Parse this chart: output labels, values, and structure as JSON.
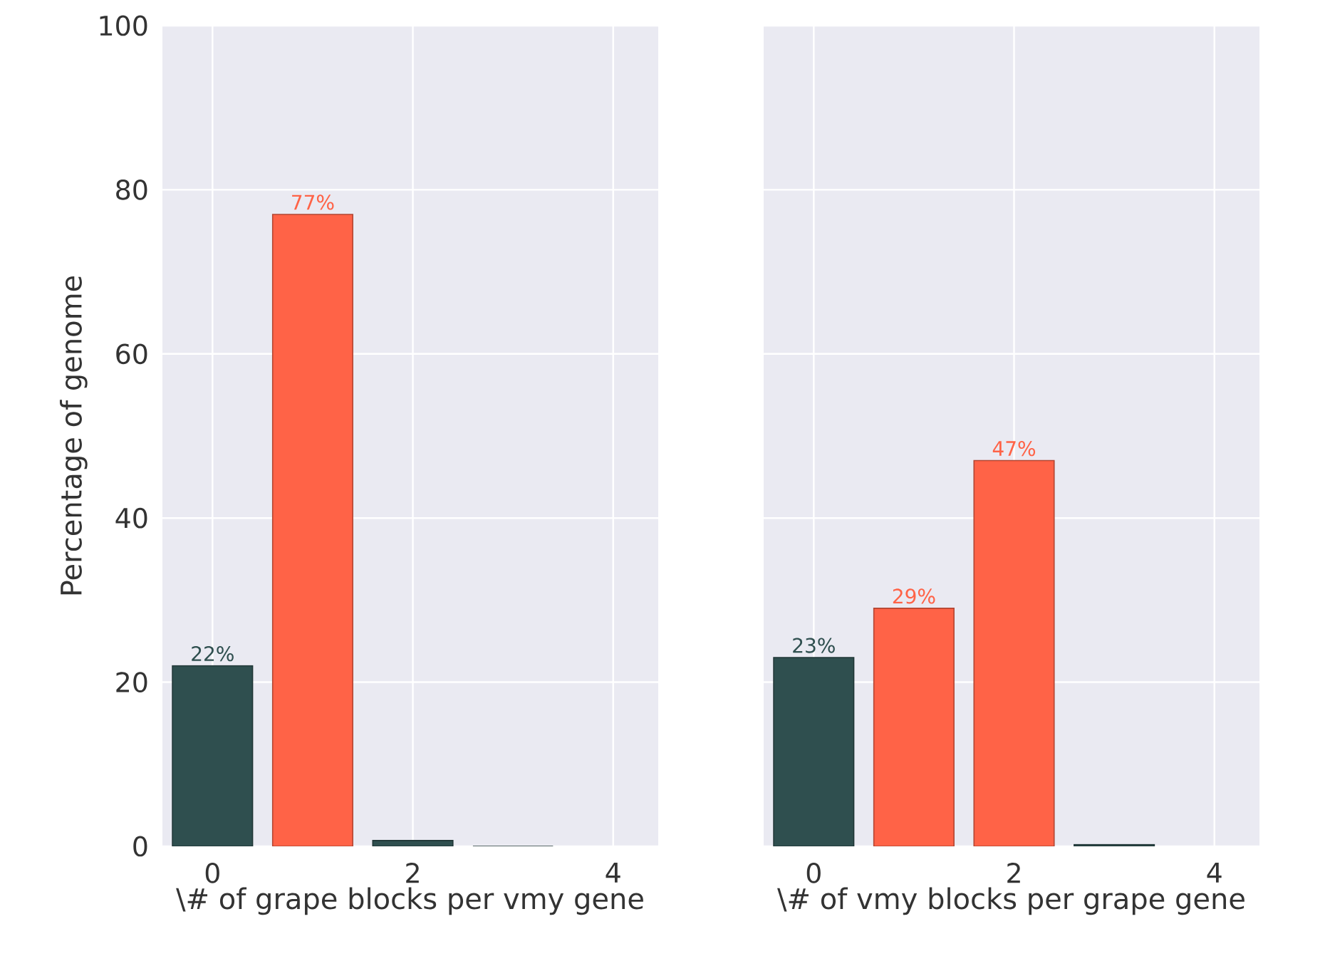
{
  "chart_data": [
    {
      "type": "bar",
      "xlabel": "\\# of grape blocks per vmy gene",
      "ylabel": "Percentage of genome",
      "x": [
        0,
        1,
        2,
        3
      ],
      "values": [
        22,
        77,
        0.7,
        0
      ],
      "colors": [
        "#2f4f4f",
        "#ff6347",
        "#2f4f4f",
        "#2f4f4f"
      ],
      "value_labels": [
        "22%",
        "77%",
        null,
        null
      ],
      "xlim": [
        -0.5,
        4.45
      ],
      "xticks": [
        0,
        2,
        4
      ],
      "ylim": [
        0,
        100
      ],
      "yticks": [
        0,
        20,
        40,
        60,
        80,
        100
      ],
      "grid": true
    },
    {
      "type": "bar",
      "xlabel": "\\# of vmy blocks per grape gene",
      "x": [
        0,
        1,
        2,
        3
      ],
      "values": [
        23,
        29,
        47,
        0.2
      ],
      "colors": [
        "#2f4f4f",
        "#ff6347",
        "#ff6347",
        "#2f4f4f"
      ],
      "value_labels": [
        "23%",
        "29%",
        "47%",
        null
      ],
      "xlim": [
        -0.5,
        4.45
      ],
      "xticks": [
        0,
        2,
        4
      ],
      "ylim": [
        0,
        100
      ],
      "yticks": [
        0,
        20,
        40,
        60,
        80,
        100
      ],
      "grid": true,
      "tick_labels": "x"
    }
  ]
}
